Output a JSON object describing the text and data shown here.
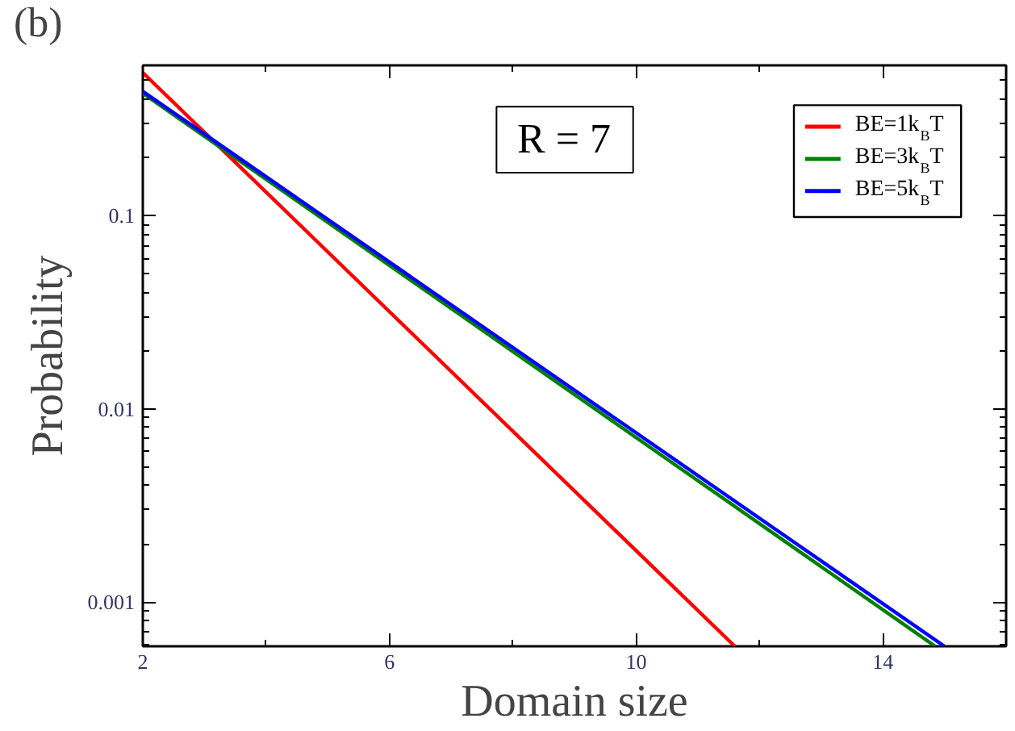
{
  "chart_data": {
    "type": "line",
    "xlabel": "Domain size",
    "ylabel": "Probability",
    "annotations": [
      "(b)",
      "R = 7"
    ],
    "log": "y",
    "grid": false,
    "legend": "top right",
    "line_style": "solid",
    "marker": "none",
    "xlim": [
      2,
      16
    ],
    "ylim": [
      0.00059,
      0.6
    ],
    "xticks": [
      2,
      6,
      10,
      14
    ],
    "yticks": [
      0.001,
      0.01,
      0.1
    ],
    "series": [
      {
        "name": "BE=1k$_{B}$T",
        "color": "#ff0000",
        "x": [
          2,
          11.6
        ],
        "values": [
          0.55,
          0.00059
        ]
      },
      {
        "name": "BE=3k$_{B}$T",
        "color": "#008000",
        "x": [
          2,
          14.85
        ],
        "values": [
          0.43,
          0.00059
        ]
      },
      {
        "name": "BE=5k$_{B}$T",
        "color": "#0000ff",
        "x": [
          2,
          15.0
        ],
        "values": [
          0.44,
          0.00059
        ]
      }
    ]
  }
}
